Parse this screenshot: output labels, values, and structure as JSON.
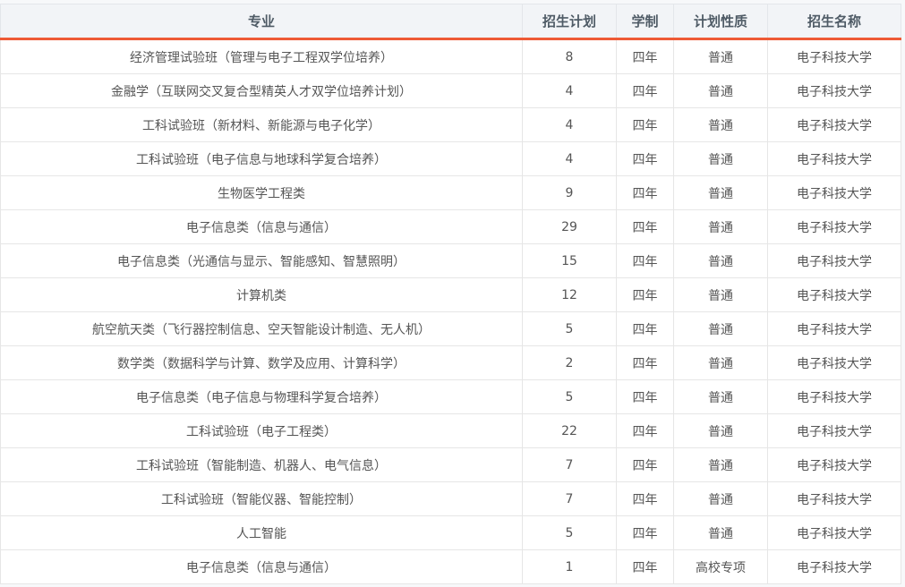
{
  "table": {
    "headers": [
      "专业",
      "招生计划",
      "学制",
      "计划性质",
      "招生名称"
    ],
    "accent_color": "#ee5a36",
    "rows": [
      [
        "经济管理试验班（管理与电子工程双学位培养）",
        "8",
        "四年",
        "普通",
        "电子科技大学"
      ],
      [
        "金融学（互联网交叉复合型精英人才双学位培养计划）",
        "4",
        "四年",
        "普通",
        "电子科技大学"
      ],
      [
        "工科试验班（新材料、新能源与电子化学）",
        "4",
        "四年",
        "普通",
        "电子科技大学"
      ],
      [
        "工科试验班（电子信息与地球科学复合培养）",
        "4",
        "四年",
        "普通",
        "电子科技大学"
      ],
      [
        "生物医学工程类",
        "9",
        "四年",
        "普通",
        "电子科技大学"
      ],
      [
        "电子信息类（信息与通信）",
        "29",
        "四年",
        "普通",
        "电子科技大学"
      ],
      [
        "电子信息类（光通信与显示、智能感知、智慧照明）",
        "15",
        "四年",
        "普通",
        "电子科技大学"
      ],
      [
        "计算机类",
        "12",
        "四年",
        "普通",
        "电子科技大学"
      ],
      [
        "航空航天类（飞行器控制信息、空天智能设计制造、无人机）",
        "5",
        "四年",
        "普通",
        "电子科技大学"
      ],
      [
        "数学类（数据科学与计算、数学及应用、计算科学）",
        "2",
        "四年",
        "普通",
        "电子科技大学"
      ],
      [
        "电子信息类（电子信息与物理科学复合培养）",
        "5",
        "四年",
        "普通",
        "电子科技大学"
      ],
      [
        "工科试验班（电子工程类）",
        "22",
        "四年",
        "普通",
        "电子科技大学"
      ],
      [
        "工科试验班（智能制造、机器人、电气信息）",
        "7",
        "四年",
        "普通",
        "电子科技大学"
      ],
      [
        "工科试验班（智能仪器、智能控制）",
        "7",
        "四年",
        "普通",
        "电子科技大学"
      ],
      [
        "人工智能",
        "5",
        "四年",
        "普通",
        "电子科技大学"
      ],
      [
        "电子信息类（信息与通信）",
        "1",
        "四年",
        "高校专项",
        "电子科技大学"
      ]
    ]
  }
}
